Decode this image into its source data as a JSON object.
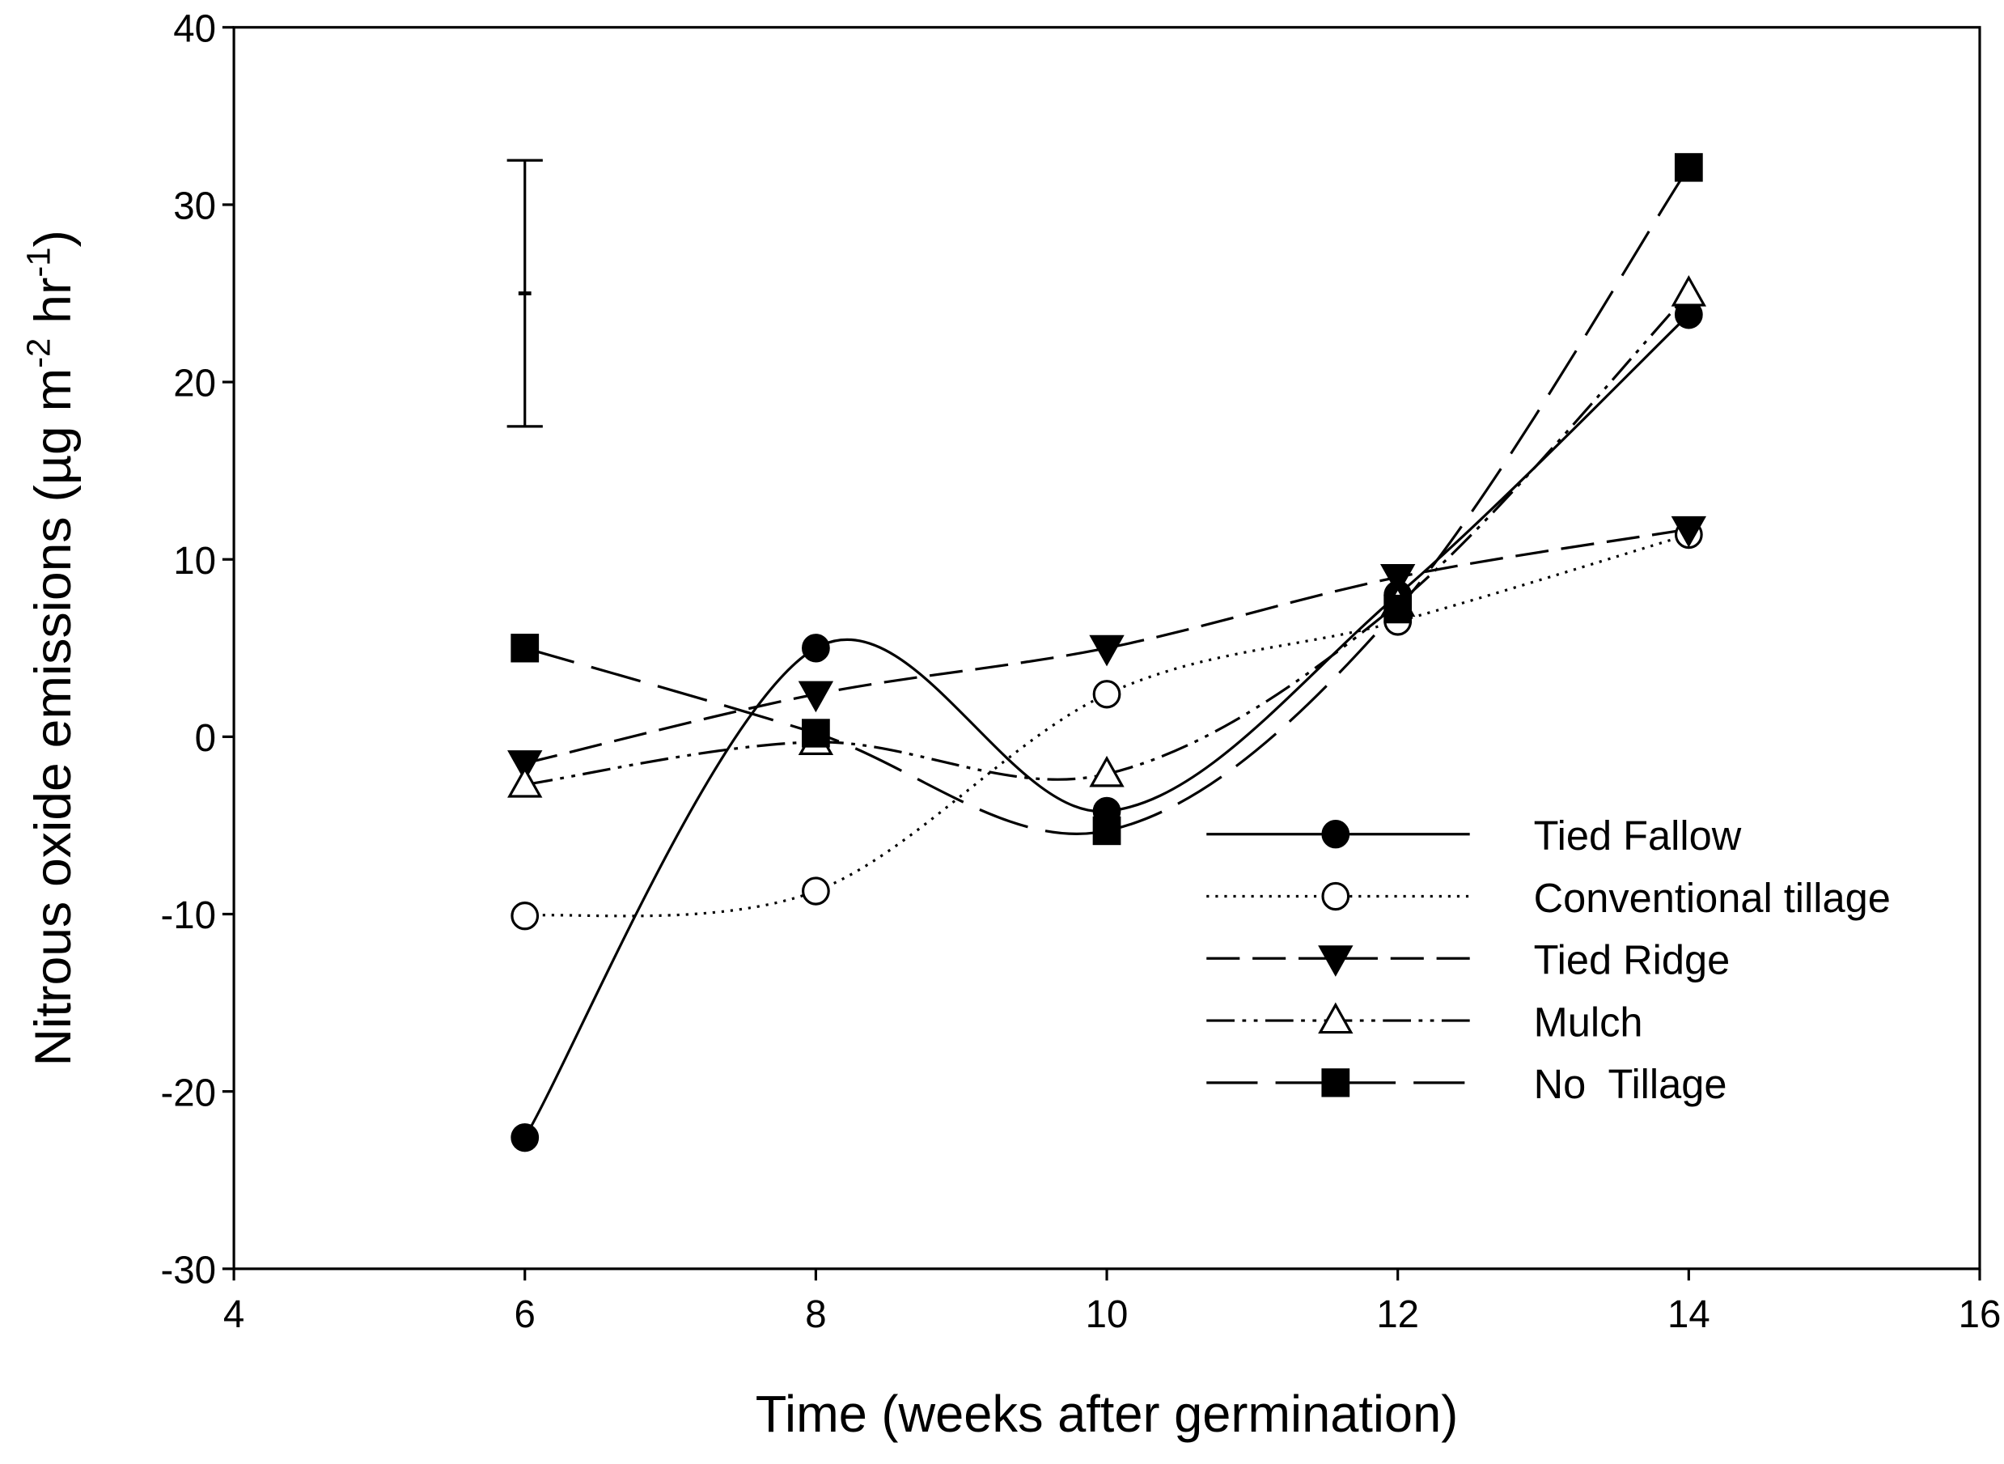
{
  "chart_data": {
    "type": "line",
    "xlabel": "Time (weeks after germination)",
    "ylabel": {
      "parts": [
        "Nitrous oxide emissions (µg m",
        "-2",
        " hr",
        "-1",
        ")"
      ]
    },
    "x": [
      6,
      8,
      10,
      12,
      14
    ],
    "series": [
      {
        "name": "Tied Fallow",
        "color": "#000000",
        "line_style": "solid",
        "marker": "circle",
        "marker_fill": "filled",
        "values": [
          -22.6,
          5.0,
          -4.2,
          8.0,
          23.8
        ]
      },
      {
        "name": "Conventional tillage",
        "color": "#000000",
        "line_style": "dotted",
        "marker": "circle",
        "marker_fill": "open",
        "values": [
          -10.1,
          -8.7,
          2.4,
          6.5,
          11.4
        ]
      },
      {
        "name": "Tied Ridge",
        "color": "#000000",
        "line_style": "dashed",
        "marker": "triangle-down",
        "marker_fill": "filled",
        "values": [
          -1.5,
          2.4,
          5.0,
          9.0,
          11.7
        ]
      },
      {
        "name": "Mulch",
        "color": "#000000",
        "line_style": "dash-dot-dot",
        "marker": "triangle-up",
        "marker_fill": "open",
        "values": [
          -2.7,
          -0.3,
          -2.1,
          7.5,
          25.0
        ]
      },
      {
        "name": "No  Tillage",
        "color": "#000000",
        "line_style": "long-dash",
        "marker": "square",
        "marker_fill": "filled",
        "values": [
          5.0,
          0.2,
          -5.3,
          7.2,
          32.1
        ]
      }
    ],
    "error_bar": {
      "x": 6,
      "y": 25,
      "error": 7.5
    },
    "xlim": [
      4,
      16
    ],
    "xticks": [
      4,
      6,
      8,
      10,
      12,
      14,
      16
    ],
    "ylim": [
      -30,
      40
    ],
    "yticks": [
      -30,
      -20,
      -10,
      0,
      10,
      20,
      30,
      40
    ],
    "smooth": true,
    "legend": "lower right"
  }
}
